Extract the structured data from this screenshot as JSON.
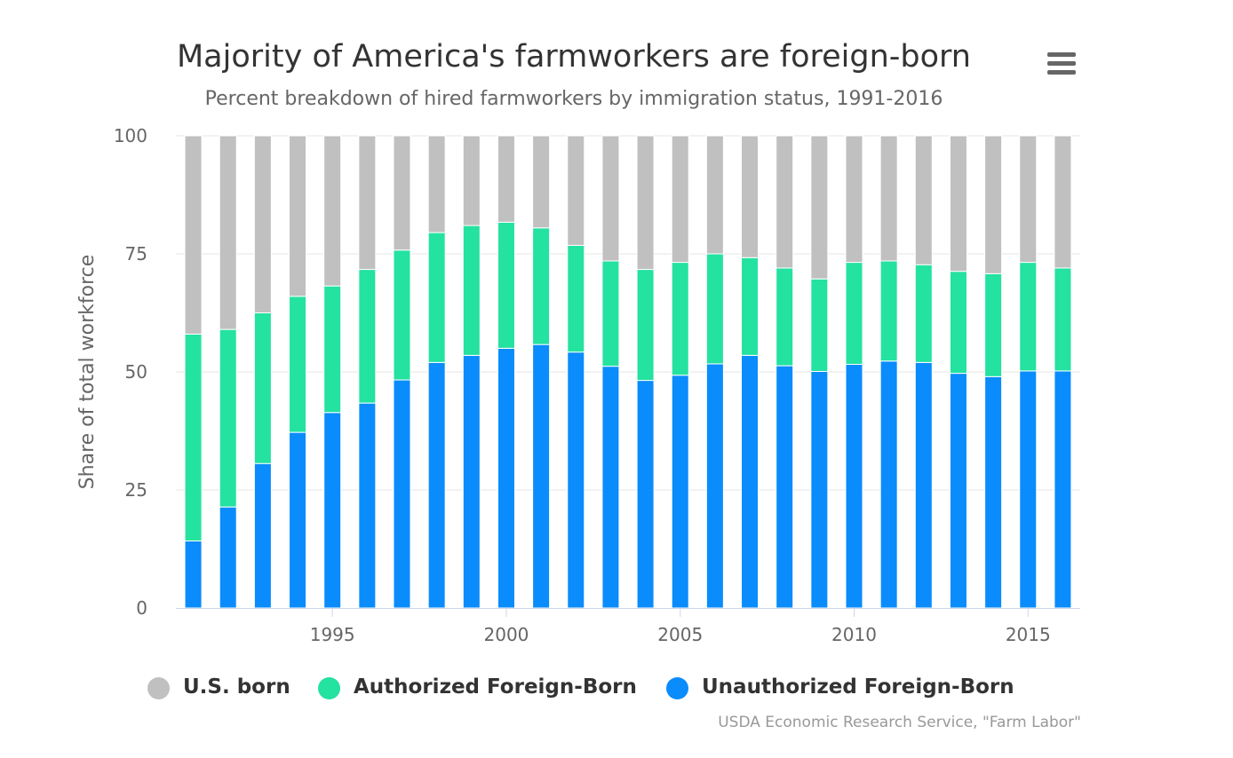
{
  "title": "Majority of America's farmworkers are foreign-born",
  "subtitle": "Percent breakdown of hired farmworkers by immigration status, 1991-2016",
  "credits": "USDA Economic Research Service, \"Farm Labor\"",
  "menu_icon": "hamburger-menu-icon",
  "chart_data": {
    "type": "bar",
    "stacked": true,
    "ylabel": "Share of total workforce",
    "ylim": [
      0,
      100
    ],
    "yticks": [
      0,
      25,
      50,
      75,
      100
    ],
    "xlim": [
      1990.5,
      2016.5
    ],
    "xticks": [
      1995,
      2000,
      2005,
      2010,
      2015
    ],
    "grid": true,
    "legend_position": "bottom",
    "categories": [
      1991,
      1992,
      1993,
      1994,
      1995,
      1996,
      1997,
      1998,
      1999,
      2000,
      2001,
      2002,
      2003,
      2004,
      2005,
      2006,
      2007,
      2008,
      2009,
      2010,
      2011,
      2012,
      2013,
      2014,
      2015,
      2016
    ],
    "series": [
      {
        "name": "U.S. born",
        "color": "#c0c0c0",
        "values": [
          42,
          41,
          37.5,
          34,
          31.8,
          28.3,
          24.2,
          20.5,
          19,
          18.3,
          19.5,
          23.2,
          26.5,
          28.3,
          26.8,
          25,
          25.8,
          28,
          30.3,
          26.8,
          26.5,
          27.3,
          28.7,
          29.2,
          26.8,
          28
        ]
      },
      {
        "name": "Authorized Foreign-Born",
        "color": "#24e2a0",
        "values": [
          43.8,
          37.6,
          31.9,
          28.8,
          26.8,
          28.3,
          27.5,
          27.5,
          27.5,
          26.7,
          24.7,
          22.6,
          22.3,
          23.5,
          23.9,
          23.3,
          20.7,
          20.7,
          19.6,
          21.6,
          21.2,
          20.7,
          21.6,
          21.8,
          23,
          21.8
        ]
      },
      {
        "name": "Unauthorized Foreign-Born",
        "color": "#0a8cfc",
        "values": [
          14.2,
          21.4,
          30.6,
          37.2,
          41.4,
          43.4,
          48.3,
          52,
          53.5,
          55,
          55.8,
          54.2,
          51.2,
          48.2,
          49.3,
          51.7,
          53.5,
          51.3,
          50.1,
          51.6,
          52.3,
          52,
          49.7,
          49,
          50.2,
          50.2
        ]
      }
    ]
  }
}
